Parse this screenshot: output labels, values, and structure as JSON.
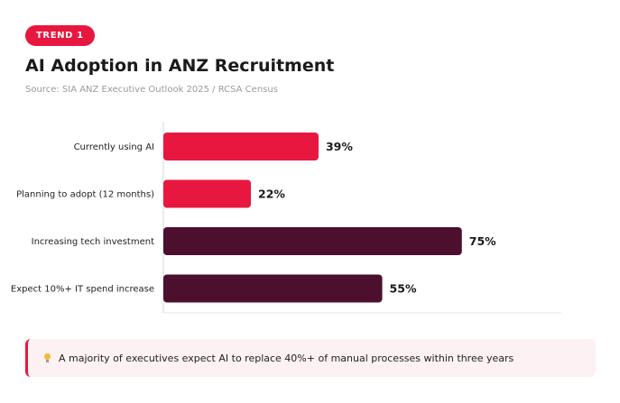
{
  "header": {
    "badge": "TREND 1",
    "title": "AI Adoption in ANZ Recruitment",
    "source": "Source: SIA ANZ Executive Outlook 2025 / RCSA Census"
  },
  "chart_data": {
    "type": "bar",
    "orientation": "horizontal",
    "categories": [
      "Currently using AI",
      "Planning to adopt (12 months)",
      "Increasing tech investment",
      "Expect 10%+ IT spend increase"
    ],
    "values": [
      39,
      22,
      75,
      55
    ],
    "value_suffix": "%",
    "bar_colors": [
      "#e8173f",
      "#e8173f",
      "#4d0f2e",
      "#4d0f2e"
    ],
    "xlim": [
      0,
      100
    ],
    "grid": false,
    "legend": "none"
  },
  "callout": {
    "icon": "lightbulb-icon",
    "text": "A majority of executives expect AI to replace 40%+ of manual processes within three years"
  }
}
